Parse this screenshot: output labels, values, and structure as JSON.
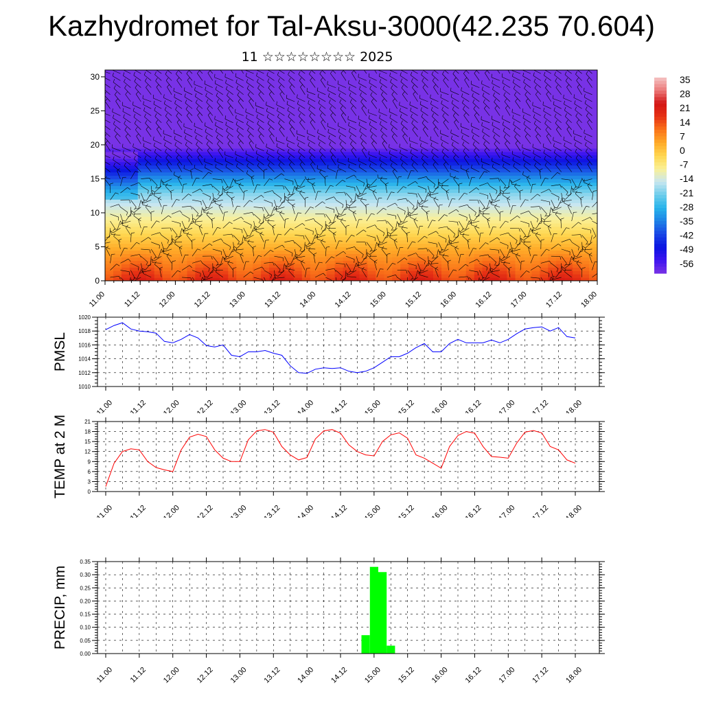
{
  "title": "Kazhydromet for Tal-Aksu-3000(42.235 70.604)",
  "date_line": "11 ☆☆☆☆☆☆☆☆ 2025",
  "colors": {
    "pmsl_line": "#0000ff",
    "temp_line": "#ff0000",
    "precip_bar": "#00ff00",
    "wind_barb": "#000000"
  },
  "chart_data": [
    {
      "type": "heatmap",
      "name": "cross-section",
      "x_ticks": [
        "11.00",
        "11.12",
        "12.00",
        "12.12",
        "13.00",
        "13.12",
        "14.00",
        "14.12",
        "15.00",
        "15.12",
        "16.00",
        "16.12",
        "17.00",
        "17.12",
        "18.00"
      ],
      "y_ticks": [
        0,
        5,
        10,
        15,
        20,
        25,
        30
      ],
      "ylim": [
        0,
        31
      ],
      "colorbar": {
        "labels": [
          "35",
          "28",
          "21",
          "14",
          "7",
          "0",
          "-7",
          "-14",
          "-21",
          "-28",
          "-35",
          "-42",
          "-49",
          "-56"
        ],
        "min": -63,
        "max": 42
      },
      "overlay": "wind barbs"
    },
    {
      "type": "line",
      "name": "pmsl",
      "ylabel": "PMSL",
      "y_ticks": [
        "1010",
        "1012",
        "1014",
        "1016",
        "1018",
        "1020"
      ],
      "ylim": [
        1010,
        1020
      ],
      "x_ticks": [
        "11.00",
        "11.12",
        "12.00",
        "12.12",
        "13.00",
        "13.12",
        "14.00",
        "14.12",
        "15.00",
        "15.12",
        "16.00",
        "16.12",
        "17.00",
        "17.12",
        "18.00"
      ],
      "x_hours": [
        0,
        3,
        6,
        9,
        12,
        15,
        18,
        21,
        24,
        27,
        30,
        33,
        36,
        39,
        42,
        45,
        48,
        51,
        54,
        57,
        60,
        63,
        66,
        69,
        72,
        75,
        78,
        81,
        84,
        87,
        90,
        93,
        96,
        99,
        102,
        105,
        108,
        111,
        114,
        117,
        120,
        123,
        126,
        129,
        132,
        135,
        138,
        141,
        144,
        147,
        150,
        153,
        156,
        159,
        162,
        165,
        168
      ],
      "values": [
        1018.2,
        1018.8,
        1019.2,
        1018.3,
        1018.0,
        1017.9,
        1017.7,
        1016.5,
        1016.3,
        1016.8,
        1017.5,
        1017.0,
        1015.9,
        1015.7,
        1016.0,
        1014.5,
        1014.3,
        1015.0,
        1015.0,
        1015.2,
        1014.8,
        1014.5,
        1013.0,
        1012.0,
        1011.9,
        1012.5,
        1012.7,
        1012.6,
        1012.7,
        1012.2,
        1012.0,
        1012.2,
        1012.7,
        1013.5,
        1014.3,
        1014.3,
        1014.8,
        1015.6,
        1016.2,
        1015.0,
        1015.0,
        1016.2,
        1016.8,
        1016.3,
        1016.3,
        1016.3,
        1016.7,
        1016.3,
        1016.8,
        1017.6,
        1018.3,
        1018.5,
        1018.6,
        1018.0,
        1018.5,
        1017.2,
        1017.0
      ]
    },
    {
      "type": "line",
      "name": "temp",
      "ylabel": "TEMP at 2 M",
      "y_ticks": [
        "0",
        "3",
        "6",
        "9",
        "12",
        "15",
        "18",
        "21"
      ],
      "ylim": [
        0,
        21
      ],
      "x_ticks": [
        "11.00",
        "11.12",
        "12.00",
        "12.12",
        "13.00",
        "13.12",
        "14.00",
        "14.12",
        "15.00",
        "15.12",
        "16.00",
        "16.12",
        "17.00",
        "17.12",
        "18.00"
      ],
      "x_hours": [
        0,
        3,
        6,
        9,
        12,
        15,
        18,
        21,
        24,
        27,
        30,
        33,
        36,
        39,
        42,
        45,
        48,
        51,
        54,
        57,
        60,
        63,
        66,
        69,
        72,
        75,
        78,
        81,
        84,
        87,
        90,
        93,
        96,
        99,
        102,
        105,
        108,
        111,
        114,
        117,
        120,
        123,
        126,
        129,
        132,
        135,
        138,
        141,
        144,
        147,
        150,
        153,
        156,
        159,
        162,
        165,
        168
      ],
      "values": [
        1.5,
        8.5,
        12.0,
        12.8,
        12.5,
        9.0,
        7.2,
        6.5,
        6.0,
        12.5,
        16.3,
        17.2,
        16.5,
        12.5,
        10.0,
        9.0,
        9.0,
        15.5,
        18.2,
        18.6,
        17.8,
        13.5,
        11.0,
        9.5,
        10.2,
        15.8,
        18.2,
        18.6,
        17.5,
        14.0,
        12.0,
        11.0,
        10.7,
        15.0,
        17.0,
        17.6,
        16.0,
        11.0,
        10.0,
        8.5,
        7.0,
        13.5,
        16.8,
        18.0,
        17.5,
        13.5,
        10.5,
        10.3,
        10.0,
        14.5,
        17.8,
        18.3,
        17.6,
        13.5,
        12.5,
        9.5,
        8.5
      ]
    },
    {
      "type": "bar",
      "name": "precip",
      "ylabel": "PRECIP, mm",
      "y_ticks": [
        "0.00",
        "0.05",
        "0.10",
        "0.15",
        "0.20",
        "0.25",
        "0.30",
        "0.35"
      ],
      "ylim": [
        0,
        0.35
      ],
      "x_ticks": [
        "11.00",
        "11.12",
        "12.00",
        "12.12",
        "13.00",
        "13.12",
        "14.00",
        "14.12",
        "15.00",
        "15.12",
        "16.00",
        "16.12",
        "17.00",
        "17.12",
        "18.00"
      ],
      "x_hours": [
        93,
        96,
        99,
        102
      ],
      "values": [
        0.07,
        0.33,
        0.31,
        0.03
      ]
    }
  ]
}
